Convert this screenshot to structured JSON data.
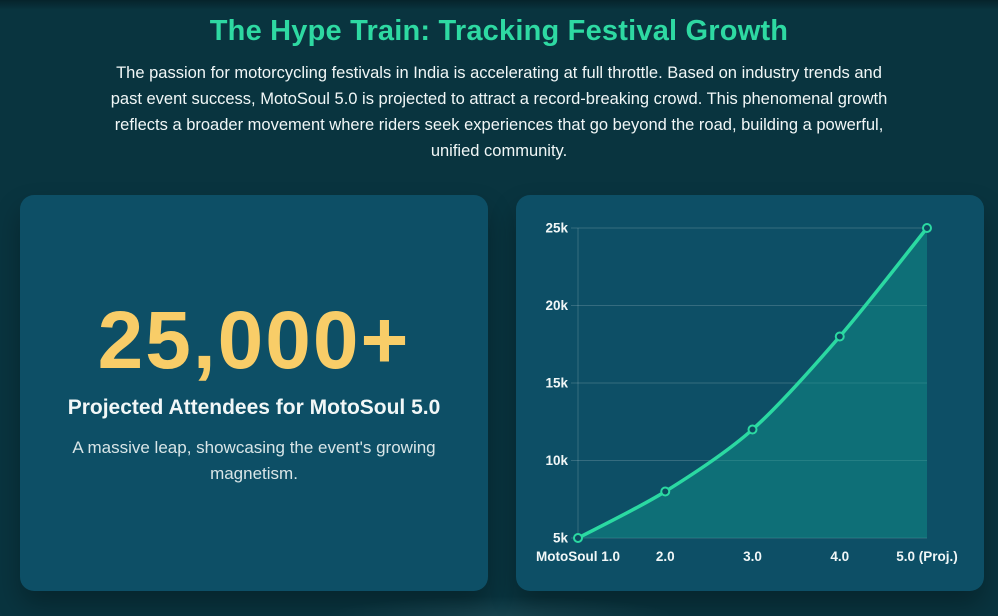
{
  "theme": {
    "page_bg": "#09343f",
    "card_bg": "#0d4f66",
    "accent_green": "#2ed9a2",
    "accent_yellow": "#f8cd68",
    "text_primary": "#f1f7f7",
    "text_secondary": "#d8e5e7",
    "grid_color": "rgba(255,255,255,0.17)"
  },
  "header": {
    "title": "The Hype Train: Tracking Festival Growth",
    "description": "The passion for motorcycling festivals in India is accelerating at full throttle. Based on industry trends and past event success, MotoSoul 5.0 is projected to attract a record-breaking crowd. This phenomenal growth reflects a broader movement where riders seek experiences that go beyond the road, building a powerful, unified community."
  },
  "stat": {
    "value": "25,000+",
    "label": "Projected Attendees for MotoSoul 5.0",
    "subtext": "A massive leap, showcasing the event's growing magnetism."
  },
  "chart_data": {
    "type": "area",
    "title": "",
    "xlabel": "",
    "ylabel": "",
    "categories": [
      "MotoSoul 1.0",
      "2.0",
      "3.0",
      "4.0",
      "5.0 (Proj.)"
    ],
    "values": [
      5000,
      8000,
      12000,
      18000,
      25000
    ],
    "ylim": [
      5000,
      25000
    ],
    "yticks": [
      5000,
      10000,
      15000,
      20000,
      25000
    ],
    "ytick_labels": [
      "5k",
      "10k",
      "15k",
      "20k",
      "25k"
    ],
    "grid": true,
    "legend": false,
    "line_color": "#2bd9a2",
    "area_fill": "rgba(16,150,140,0.45)",
    "marker": "circle",
    "marker_fill": "#0c4a5e"
  }
}
